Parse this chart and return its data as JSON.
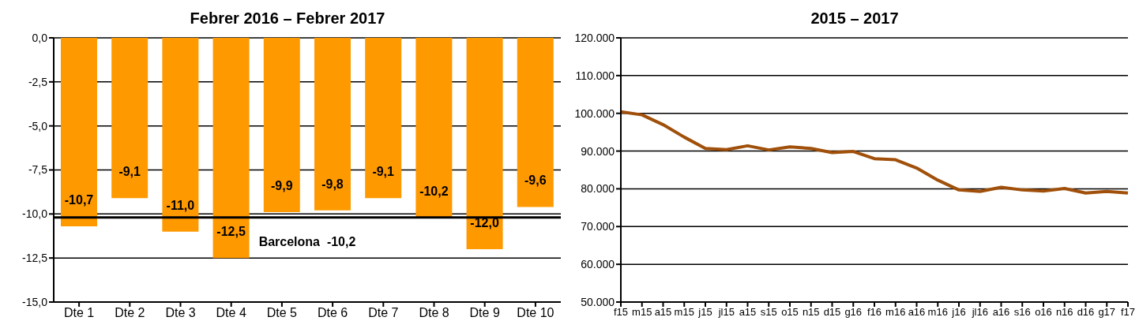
{
  "chart_data": [
    {
      "type": "bar",
      "title": "Febrer 2016 – Febrer 2017",
      "categories": [
        "Dte 1",
        "Dte 2",
        "Dte 3",
        "Dte 4",
        "Dte 5",
        "Dte 6",
        "Dte 7",
        "Dte 8",
        "Dte 9",
        "Dte 10"
      ],
      "series": [
        {
          "color": "#ff9900",
          "values": [
            -10.7,
            -9.1,
            -11.0,
            -12.5,
            -9.9,
            -9.8,
            -9.1,
            -10.2,
            -12.0,
            -9.6
          ],
          "value_labels": [
            "-10,7",
            "-9,1",
            "-11,0",
            "-12,5",
            "-9,9",
            "-9,8",
            "-9,1",
            "-10,2",
            "-12,0",
            "-9,6"
          ]
        }
      ],
      "ylim": [
        -15,
        0
      ],
      "yticks": [
        {
          "value": -15,
          "label": "-15,0"
        },
        {
          "value": -12.5,
          "label": "-12,5"
        },
        {
          "value": -10,
          "label": "-10,0"
        },
        {
          "value": -7.5,
          "label": "-7,5"
        },
        {
          "value": -5,
          "label": "-5,0"
        },
        {
          "value": -2.5,
          "label": "-2,5"
        },
        {
          "value": 0,
          "label": "0,0"
        }
      ],
      "grid": "y",
      "legend": false,
      "ref_lines": [
        {
          "axis": "y",
          "value": -10.2,
          "label": "Barcelona  -10,2",
          "color": "#000000"
        }
      ]
    },
    {
      "type": "line",
      "title": "2015 –  2017",
      "categories": [
        "f15",
        "m15",
        "a15",
        "m15",
        "j15",
        "jl15",
        "a15",
        "s15",
        "o15",
        "n15",
        "d15",
        "g16",
        "f16",
        "m16",
        "a16",
        "m16",
        "j16",
        "jl16",
        "a16",
        "s16",
        "o16",
        "n16",
        "d16",
        "g17",
        "f17"
      ],
      "series": [
        {
          "color": "#a0500a",
          "values": [
            100400,
            99600,
            97000,
            93700,
            90700,
            90400,
            91400,
            90300,
            91100,
            90700,
            89600,
            89900,
            88000,
            87700,
            85500,
            82300,
            79700,
            79300,
            80400,
            79700,
            79400,
            80100,
            78900,
            79300,
            78900
          ]
        }
      ],
      "ylim": [
        50000,
        120000
      ],
      "yticks": [
        {
          "value": 50000,
          "label": "50.000"
        },
        {
          "value": 60000,
          "label": "60.000"
        },
        {
          "value": 70000,
          "label": "70.000"
        },
        {
          "value": 80000,
          "label": "80.000"
        },
        {
          "value": 90000,
          "label": "90.000"
        },
        {
          "value": 100000,
          "label": "100.000"
        },
        {
          "value": 110000,
          "label": "110.000"
        },
        {
          "value": 120000,
          "label": "120.000"
        }
      ],
      "grid": "y",
      "legend": false,
      "marker": "none",
      "line_style": "solid"
    }
  ]
}
